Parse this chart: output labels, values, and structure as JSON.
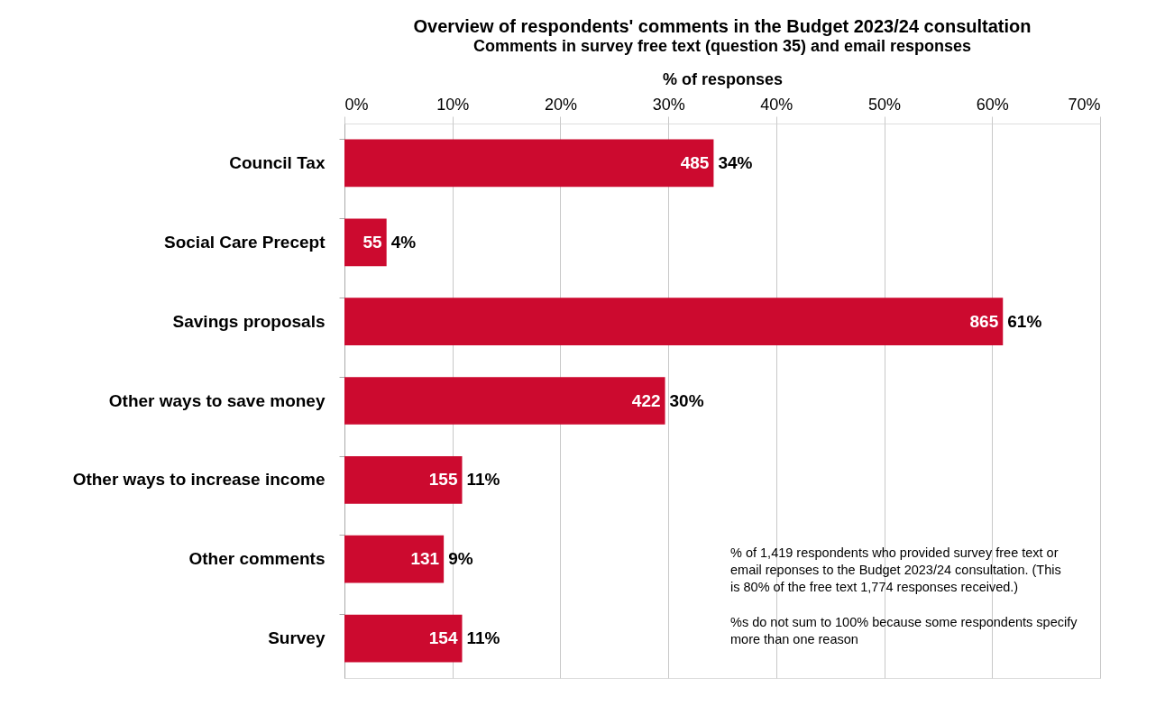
{
  "chart_data": {
    "type": "bar",
    "orientation": "horizontal",
    "title": "Overview of respondents' comments in the Budget 2023/24 consultation",
    "subtitle": "Comments in survey free text (question 35) and email responses",
    "xlabel": "% of responses",
    "categories": [
      "Council Tax",
      "Social Care Precept",
      "Savings proposals",
      "Other ways to save money",
      "Other ways to increase income",
      "Other comments",
      "Survey"
    ],
    "values": [
      34.2,
      3.9,
      61.0,
      29.7,
      10.9,
      9.2,
      10.9
    ],
    "value_labels": [
      "34%",
      "4%",
      "61%",
      "30%",
      "11%",
      "9%",
      "11%"
    ],
    "color": "#cc0a2f",
    "xlim": [
      0,
      70
    ],
    "xticks": [
      {
        "value": 0,
        "label": "0%"
      },
      {
        "value": 10,
        "label": "10%"
      },
      {
        "value": 20,
        "label": "20%"
      },
      {
        "value": 30,
        "label": "30%"
      },
      {
        "value": 40,
        "label": "40%"
      },
      {
        "value": 50,
        "label": "50%"
      },
      {
        "value": 60,
        "label": "60%"
      },
      {
        "value": 70,
        "label": "70%"
      }
    ],
    "grid": "x",
    "annotations": [
      {
        "text": "485",
        "x": 34.2,
        "y": "Council Tax"
      },
      {
        "text": "55",
        "x": 3.9,
        "y": "Social Care Precept"
      },
      {
        "text": "865",
        "x": 61.0,
        "y": "Savings proposals"
      },
      {
        "text": "422",
        "x": 29.7,
        "y": "Other ways to save money"
      },
      {
        "text": "155",
        "x": 10.9,
        "y": "Other ways to increase income"
      },
      {
        "text": "131",
        "x": 9.2,
        "y": "Other comments"
      },
      {
        "text": "154",
        "x": 10.9,
        "y": "Survey"
      },
      "% of 1,419 respondents who provided survey free text or email reponses to the Budget 2023/24 consultation. (This is 80% of the free text 1,774 responses received.)",
      "%s do not sum to 100% because some respondents specify more than one reason"
    ]
  }
}
